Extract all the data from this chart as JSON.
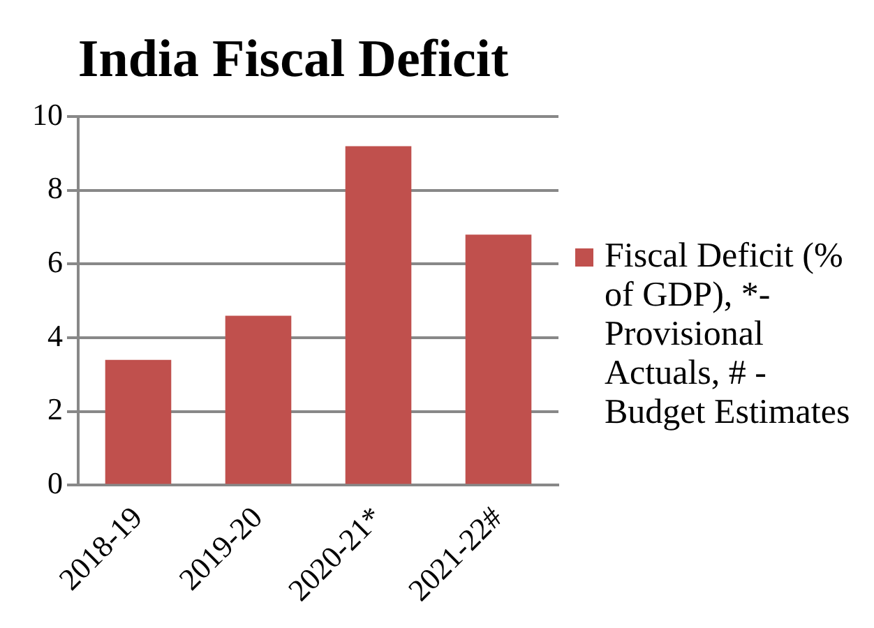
{
  "chart_data": {
    "type": "bar",
    "title": "India Fiscal Deficit",
    "categories": [
      "2018-19",
      "2019-20",
      "2020-21*",
      "2021-22#"
    ],
    "series": [
      {
        "name": "Fiscal Deficit (% of GDP), *- Provisional Actuals, # - Budget Estimates",
        "color": "#c0504d",
        "values": [
          3.4,
          4.6,
          9.2,
          6.8
        ]
      }
    ],
    "ylim": [
      0,
      10
    ],
    "yticks": [
      0,
      2,
      4,
      6,
      8,
      10
    ],
    "grid": "y",
    "legend": "right"
  }
}
